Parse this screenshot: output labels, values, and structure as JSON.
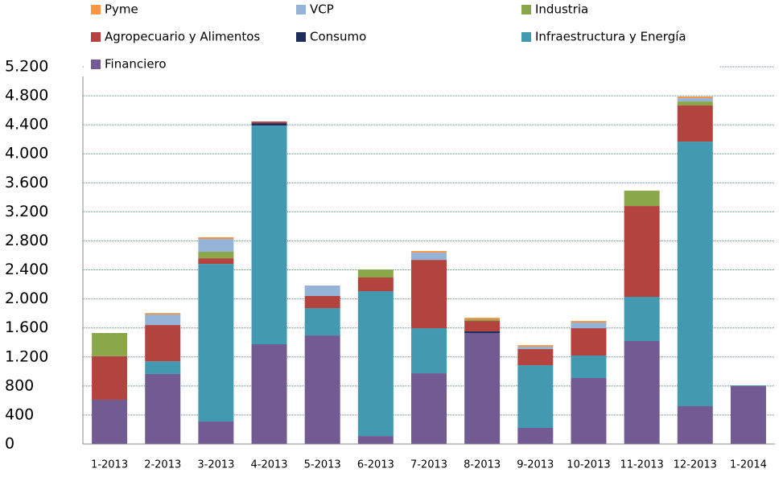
{
  "chart_data": {
    "type": "stacked_bar",
    "categories": [
      "1-2013",
      "2-2013",
      "3-2013",
      "4-2013",
      "5-2013",
      "6-2013",
      "7-2013",
      "8-2013",
      "9-2013",
      "10-2013",
      "11-2013",
      "12-2013",
      "1-2014"
    ],
    "series": [
      {
        "name": "Financiero",
        "color": "#725b92",
        "values": [
          610,
          965,
          310,
          1375,
          1496,
          110,
          975,
          1530,
          222,
          909,
          1419,
          521,
          798
        ]
      },
      {
        "name": "Infraestructura y Energía",
        "color": "#4299b0",
        "values": [
          0,
          175,
          2173,
          3015,
          377,
          1996,
          621,
          0,
          864,
          310,
          610,
          3647,
          10
        ]
      },
      {
        "name": "Consumo",
        "color": "#1f2d5c",
        "values": [
          0,
          0,
          0,
          33,
          0,
          0,
          0,
          22,
          0,
          0,
          0,
          0,
          0
        ]
      },
      {
        "name": "Agropecuario y Alimentos",
        "color": "#b3433e",
        "values": [
          600,
          500,
          77,
          22,
          167,
          189,
          942,
          144,
          222,
          377,
          1252,
          499,
          0
        ]
      },
      {
        "name": "Industria",
        "color": "#8aa84a",
        "values": [
          320,
          0,
          90,
          0,
          0,
          110,
          0,
          22,
          0,
          0,
          211,
          55,
          0
        ]
      },
      {
        "name": "VCP",
        "color": "#95b3d7",
        "values": [
          0,
          145,
          177,
          0,
          144,
          0,
          100,
          0,
          33,
          78,
          0,
          45,
          0
        ]
      },
      {
        "name": "Pyme",
        "color": "#f79646",
        "values": [
          0,
          20,
          23,
          0,
          0,
          0,
          22,
          22,
          22,
          22,
          0,
          22,
          0
        ]
      }
    ],
    "ylim": [
      0,
      5200
    ],
    "yticks": [
      0,
      400,
      800,
      {
        "value": 1200,
        "label": "1.200"
      },
      {
        "value": 1600,
        "label": "1.600"
      },
      {
        "value": 2000,
        "label": "2.000"
      },
      {
        "value": 2400,
        "label": "2.400"
      },
      {
        "value": 2800,
        "label": "2.800"
      },
      {
        "value": 3200,
        "label": "3.200"
      },
      {
        "value": 3600,
        "label": "3.600"
      },
      {
        "value": 4000,
        "label": "4.000"
      },
      {
        "value": 4400,
        "label": "4.400"
      },
      {
        "value": 4800,
        "label": "4.800"
      },
      {
        "value": 5200,
        "label": "5.200"
      }
    ],
    "grid": true
  }
}
